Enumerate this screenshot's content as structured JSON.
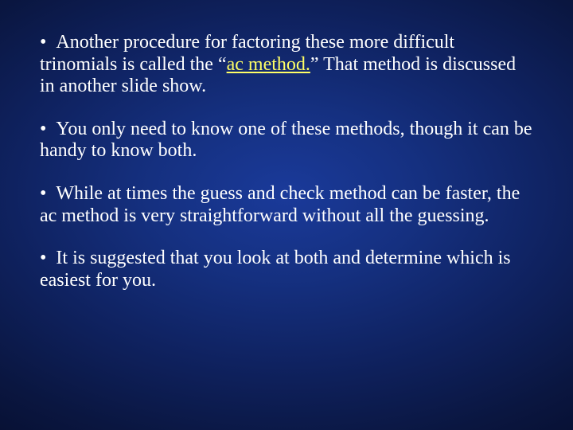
{
  "slide": {
    "background": {
      "gradient_center": "#1a3a9a",
      "gradient_mid": "#0f2260",
      "gradient_edge": "#020518"
    },
    "text_color": "#ffffff",
    "link_color": "#ffff66",
    "font_family": "Times New Roman",
    "font_size_pt": 24,
    "bullets": [
      {
        "marker": "•",
        "pre": "Another procedure for factoring these more difficult trinomials is called the “",
        "link": "ac method.",
        "post": "”  That method is discussed in another slide show."
      },
      {
        "marker": "•",
        "text": "You only need to know one of these methods, though it can be handy to know both."
      },
      {
        "marker": "•",
        "text": "While at times the guess and check method can be faster, the ac method is very straightforward without all the guessing."
      },
      {
        "marker": "•",
        "text": "It is suggested that you look at both and determine which is easiest for you."
      }
    ]
  }
}
